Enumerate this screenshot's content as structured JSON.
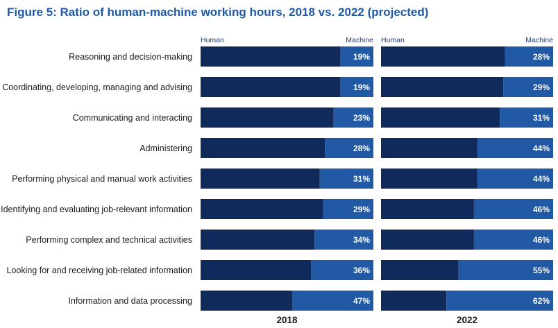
{
  "title": "Figure 5: Ratio of human-machine working hours, 2018 vs. 2022 (projected)",
  "colors": {
    "human": "#102a5c",
    "machine": "#2159a4",
    "title": "#1f5aa6"
  },
  "chart_data": [
    {
      "type": "bar",
      "stacked": true,
      "orientation": "horizontal",
      "xlabel": "2018",
      "header_left": "Human",
      "header_right": "Machine",
      "xlim": [
        0,
        100
      ],
      "categories": [
        "Reasoning and decision-making",
        "Coordinating, developing, managing and advising",
        "Communicating and interacting",
        "Administering",
        "Performing physical and manual work activities",
        "Identifying and evaluating job-relevant information",
        "Performing complex and technical activities",
        "Looking for and receiving job-related information",
        "Information and data processing"
      ],
      "series": [
        {
          "name": "Human",
          "values": [
            81,
            81,
            77,
            72,
            69,
            71,
            66,
            64,
            53
          ]
        },
        {
          "name": "Machine",
          "values": [
            19,
            19,
            23,
            28,
            31,
            29,
            34,
            36,
            47
          ]
        }
      ],
      "data_labels": [
        "19%",
        "19%",
        "23%",
        "28%",
        "31%",
        "29%",
        "34%",
        "36%",
        "47%"
      ]
    },
    {
      "type": "bar",
      "stacked": true,
      "orientation": "horizontal",
      "xlabel": "2022",
      "header_left": "Human",
      "header_right": "Machine",
      "xlim": [
        0,
        100
      ],
      "categories": [
        "Reasoning and decision-making",
        "Coordinating, developing, managing and advising",
        "Communicating and interacting",
        "Administering",
        "Performing physical and manual work activities",
        "Identifying and evaluating job-relevant information",
        "Performing complex and technical activities",
        "Looking for and receiving job-related information",
        "Information and data processing"
      ],
      "series": [
        {
          "name": "Human",
          "values": [
            72,
            71,
            69,
            56,
            56,
            54,
            54,
            45,
            38
          ]
        },
        {
          "name": "Machine",
          "values": [
            28,
            29,
            31,
            44,
            44,
            46,
            46,
            55,
            62
          ]
        }
      ],
      "data_labels": [
        "28%",
        "29%",
        "31%",
        "44%",
        "44%",
        "46%",
        "46%",
        "55%",
        "62%"
      ]
    }
  ]
}
